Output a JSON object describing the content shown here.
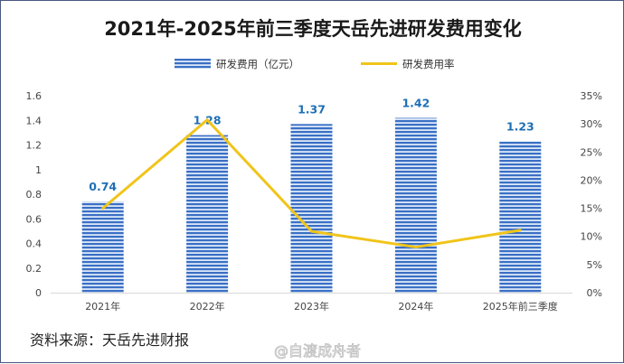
{
  "chart_data": {
    "type": "bar+line",
    "title": "2021年-2025年前三季度天岳先进研发费用变化",
    "categories": [
      "2021年",
      "2022年",
      "2023年",
      "2024年",
      "2025年前三季度"
    ],
    "series": [
      {
        "name": "研发费用（亿元）",
        "type": "bar",
        "axis": "left",
        "values": [
          0.74,
          1.28,
          1.37,
          1.42,
          1.23
        ],
        "data_labels": [
          "0.74",
          "1.28",
          "1.37",
          "1.42",
          "1.23"
        ],
        "color": "#3a6fc4"
      },
      {
        "name": "研发费用率",
        "type": "line",
        "axis": "right",
        "values": [
          15,
          30.7,
          10.9,
          8.1,
          11.1
        ],
        "color": "#f0c419"
      }
    ],
    "y_left": {
      "ylim": [
        0,
        1.6
      ],
      "ticks": [
        "0",
        "0.2",
        "0.4",
        "0.6",
        "0.8",
        "1",
        "1.2",
        "1.4",
        "1.6"
      ]
    },
    "y_right": {
      "ylim": [
        0,
        35
      ],
      "ticks": [
        "0%",
        "5%",
        "10%",
        "15%",
        "20%",
        "25%",
        "30%",
        "35%"
      ]
    },
    "grid": false,
    "legend": "top"
  },
  "source": "资料来源：天岳先进财报",
  "watermark": "@自渡成舟者"
}
